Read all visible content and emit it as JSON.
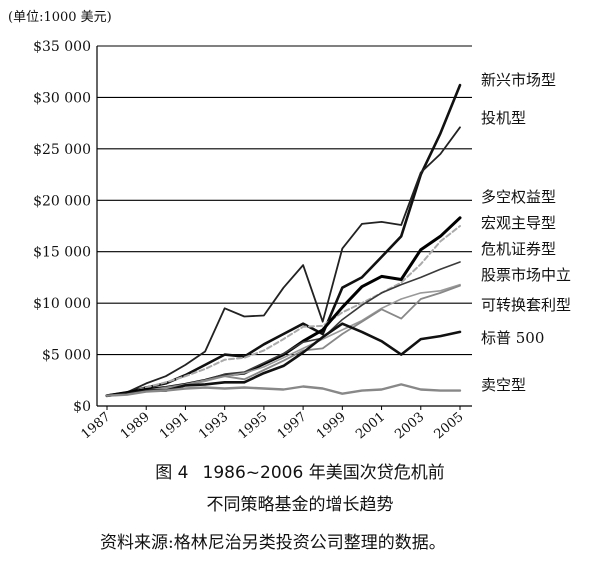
{
  "unit_label": "(单位:1000 美元)",
  "figure_number": "图 4",
  "caption_line1": "1986~2006 年美国次贷危机前",
  "caption_line2": "不同策略基金的增长趋势",
  "source_note": "资料来源:格林尼治另类投资公司整理的数据。",
  "chart_data": {
    "type": "line",
    "title": "",
    "xlabel": "",
    "ylabel": "",
    "x": [
      1987,
      1988,
      1989,
      1990,
      1991,
      1992,
      1993,
      1994,
      1995,
      1996,
      1997,
      1998,
      1999,
      2000,
      2001,
      2002,
      2003,
      2004,
      2005
    ],
    "x_tick_labels": [
      "1987",
      "1989",
      "1991",
      "1993",
      "1995",
      "1997",
      "1999",
      "2001",
      "2003",
      "2005"
    ],
    "x_tick_values": [
      1987,
      1989,
      1991,
      1993,
      1995,
      1997,
      1999,
      2001,
      2003,
      2005
    ],
    "ylim": [
      0,
      35000
    ],
    "y_ticks": [
      0,
      5000,
      10000,
      15000,
      20000,
      25000,
      30000,
      35000
    ],
    "y_tick_labels": [
      "$0",
      "$5 000",
      "$10 000",
      "$15 000",
      "$20 000",
      "$25 000",
      "$30 000",
      "$35 000"
    ],
    "grid": "horizontal",
    "legend_placement": "right",
    "series": [
      {
        "name": "新兴市场型",
        "color": "#111111",
        "width": 2.6,
        "dash": "",
        "values": [
          1000,
          1300,
          1800,
          2200,
          3000,
          4000,
          5000,
          4800,
          6000,
          7000,
          8000,
          7000,
          11500,
          12500,
          14500,
          16500,
          22500,
          26500,
          31200
        ]
      },
      {
        "name": "投机型",
        "color": "#222222",
        "width": 1.8,
        "dash": "",
        "values": [
          1000,
          1300,
          2200,
          2900,
          4000,
          5300,
          9500,
          8700,
          8800,
          11500,
          13700,
          8200,
          15300,
          17700,
          17900,
          17600,
          22700,
          24500,
          27100
        ]
      },
      {
        "name": "多空权益型",
        "color": "#aaaaaa",
        "width": 2.0,
        "dash": "5,3",
        "values": [
          1000,
          1200,
          1800,
          2300,
          2900,
          3600,
          4500,
          4700,
          5400,
          6500,
          7700,
          7800,
          9100,
          10000,
          11000,
          12000,
          13800,
          16000,
          17500
        ]
      },
      {
        "name": "宏观主导型",
        "color": "#000000",
        "width": 3.0,
        "dash": "",
        "values": [
          1000,
          1300,
          1600,
          1800,
          2100,
          2500,
          3000,
          3200,
          4100,
          5000,
          6300,
          7400,
          9600,
          11600,
          12600,
          12300,
          15200,
          16500,
          18300
        ]
      },
      {
        "name": "危机证券型",
        "color": "#3a3a3a",
        "width": 1.6,
        "dash": "",
        "values": [
          1000,
          1200,
          1500,
          1800,
          2100,
          2500,
          3100,
          3300,
          4200,
          5100,
          6200,
          6600,
          8400,
          9800,
          11000,
          11800,
          12500,
          13300,
          14000
        ]
      },
      {
        "name": "股票市场中立",
        "color": "#999999",
        "width": 1.6,
        "dash": "",
        "values": [
          1000,
          1200,
          1500,
          1700,
          2000,
          2400,
          2900,
          3200,
          3800,
          4700,
          5600,
          6500,
          7400,
          8300,
          9500,
          10400,
          11000,
          11200,
          11800
        ]
      },
      {
        "name": "可转换套利型",
        "color": "#888888",
        "width": 1.8,
        "dash": "",
        "values": [
          1000,
          1200,
          1500,
          1800,
          2100,
          2500,
          2900,
          2600,
          3500,
          4400,
          5400,
          5600,
          7000,
          8200,
          9400,
          8500,
          10400,
          11000,
          11700
        ]
      },
      {
        "name": "标普 500",
        "color": "#111111",
        "width": 2.6,
        "dash": "",
        "values": [
          1000,
          1200,
          1500,
          1500,
          2000,
          2100,
          2300,
          2300,
          3200,
          3900,
          5200,
          6700,
          8000,
          7200,
          6300,
          5000,
          6500,
          6800,
          7200
        ]
      },
      {
        "name": "卖空型",
        "color": "#888888",
        "width": 2.4,
        "dash": "",
        "values": [
          1000,
          1100,
          1400,
          1500,
          1700,
          1800,
          1700,
          1800,
          1700,
          1600,
          1900,
          1700,
          1200,
          1500,
          1600,
          2100,
          1600,
          1500,
          1500
        ]
      }
    ]
  }
}
